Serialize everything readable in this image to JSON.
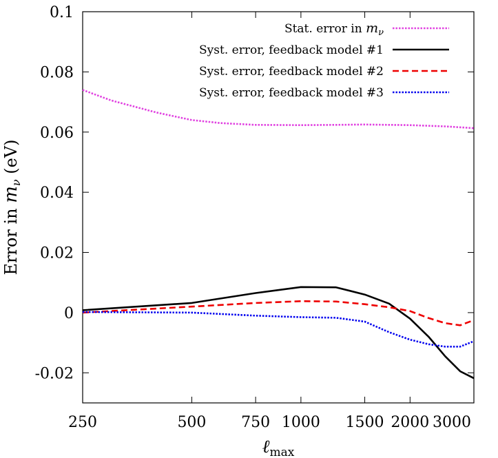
{
  "chart_data": {
    "type": "line",
    "xscale": "log",
    "xlabel_main": "ℓ",
    "xlabel_sub": "max",
    "ylabel_main": "Error in ",
    "ylabel_var": "m",
    "ylabel_sub": "ν",
    "ylabel_unit": " (eV)",
    "xlim": [
      250,
      3000
    ],
    "ylim": [
      -0.03,
      0.1
    ],
    "xticks": [
      250,
      500,
      750,
      1000,
      1500,
      2000,
      3000
    ],
    "xtick_labels": [
      "250",
      "500",
      "750",
      "1000",
      "1500",
      "2000",
      "3000"
    ],
    "yticks": [
      -0.02,
      0,
      0.02,
      0.04,
      0.06,
      0.08,
      0.1
    ],
    "ytick_labels": [
      "-0.02",
      "0",
      "0.02",
      "0.04",
      "0.06",
      "0.08",
      "0.1"
    ],
    "series": [
      {
        "name": "Stat. error in m_ν",
        "label_main": "Stat. error in ",
        "label_var": "m",
        "label_sub": "ν",
        "color": "#e040e0",
        "style": "dotted",
        "x": [
          250,
          300,
          400,
          500,
          600,
          750,
          1000,
          1250,
          1500,
          2000,
          2500,
          3000
        ],
        "y": [
          0.074,
          0.0705,
          0.0665,
          0.064,
          0.063,
          0.0624,
          0.0623,
          0.0624,
          0.0625,
          0.0623,
          0.0619,
          0.0613
        ]
      },
      {
        "name": "Syst. error, feedback model #1",
        "label_main": "Syst. error, feedback model #1",
        "color": "#000000",
        "style": "solid",
        "x": [
          250,
          500,
          750,
          1000,
          1250,
          1500,
          1750,
          2000,
          2250,
          2500,
          2750,
          3000
        ],
        "y": [
          0.0008,
          0.0032,
          0.0065,
          0.0085,
          0.0084,
          0.006,
          0.003,
          -0.002,
          -0.008,
          -0.0145,
          -0.0195,
          -0.0218
        ]
      },
      {
        "name": "Syst. error, feedback model #2",
        "label_main": "Syst. error, feedback model #2",
        "color": "#ee0000",
        "style": "dashed",
        "x": [
          250,
          500,
          750,
          1000,
          1250,
          1500,
          1750,
          2000,
          2250,
          2500,
          2750,
          3000
        ],
        "y": [
          0.0,
          0.002,
          0.0032,
          0.0038,
          0.0037,
          0.0028,
          0.0018,
          0.0005,
          -0.0018,
          -0.0035,
          -0.0042,
          -0.0025
        ]
      },
      {
        "name": "Syst. error, feedback model #3",
        "label_main": "Syst. error, feedback model #3",
        "color": "#0000ee",
        "style": "dotted",
        "x": [
          250,
          500,
          750,
          1000,
          1250,
          1500,
          1750,
          2000,
          2250,
          2500,
          2750,
          3000
        ],
        "y": [
          0.0002,
          0.0,
          -0.001,
          -0.0015,
          -0.0017,
          -0.003,
          -0.0065,
          -0.009,
          -0.0105,
          -0.0113,
          -0.0113,
          -0.0095
        ]
      }
    ],
    "legend": "top-right",
    "grid": false
  }
}
